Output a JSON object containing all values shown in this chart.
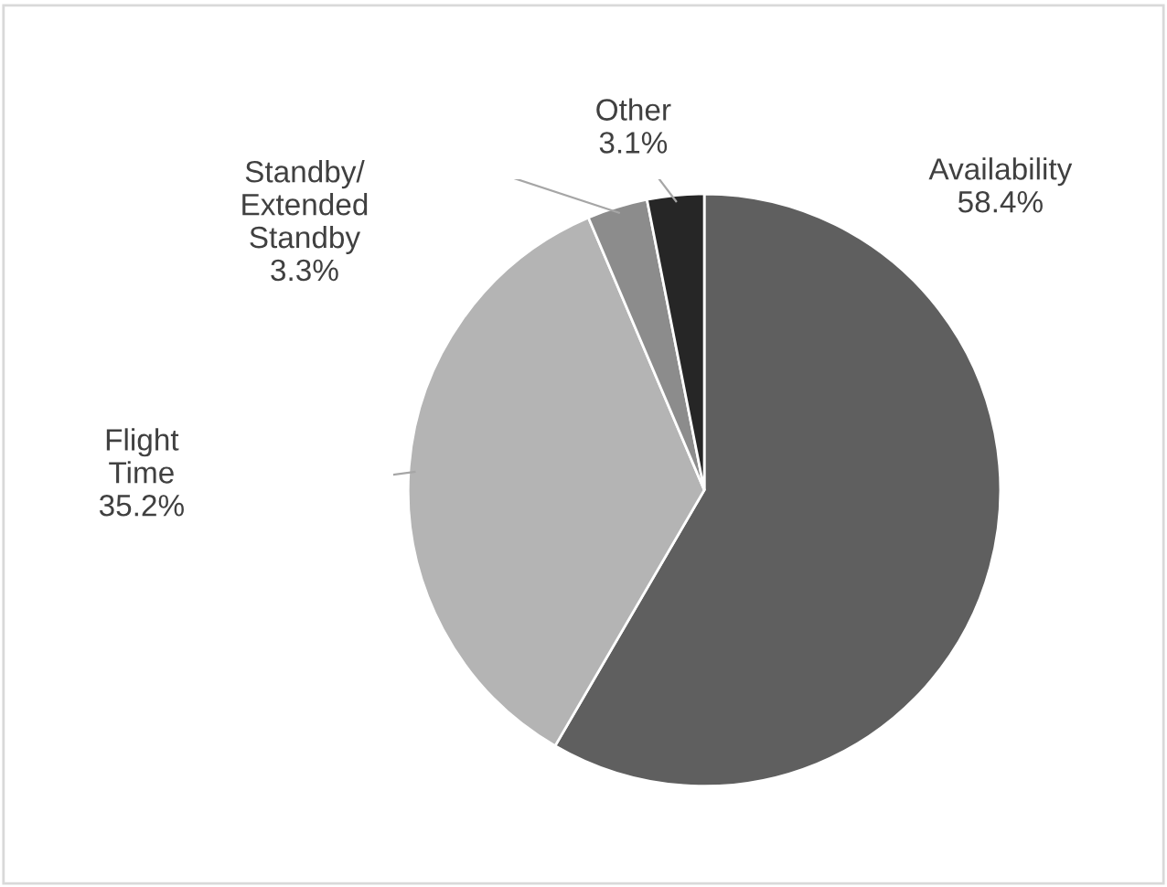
{
  "chart_data": {
    "type": "pie",
    "categories": [
      "Availability",
      "Flight\nTime",
      "Standby/\nExtended\nStandby",
      "Other"
    ],
    "values": [
      58.4,
      35.2,
      3.3,
      3.1
    ],
    "colors": [
      "#5f5f5f",
      "#b4b4b4",
      "#8c8c8c",
      "#262626"
    ],
    "value_labels": [
      "58.4%",
      "35.2%",
      "3.3%",
      "3.1%"
    ]
  }
}
